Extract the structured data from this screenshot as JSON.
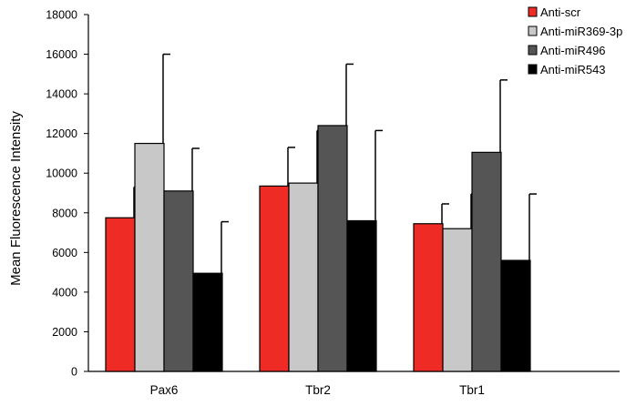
{
  "chart_data": {
    "type": "bar",
    "title": "",
    "xlabel": "",
    "ylabel": "Mean Fluorescence Intensity",
    "ylim": [
      0,
      18000
    ],
    "yticks": [
      0,
      2000,
      4000,
      6000,
      8000,
      10000,
      12000,
      14000,
      16000,
      18000
    ],
    "categories": [
      "Pax6",
      "Tbr2",
      "Tbr1"
    ],
    "grid": false,
    "legend_position": "top-right",
    "series": [
      {
        "name": "Anti-scr",
        "color": "#ee2b24",
        "values": [
          7750,
          9350,
          7450
        ],
        "errors": [
          1550,
          1950,
          1000
        ]
      },
      {
        "name": "Anti-miR369-3p",
        "color": "#c8c8c8",
        "values": [
          11500,
          9500,
          7200
        ],
        "errors": [
          4500,
          2650,
          1750
        ]
      },
      {
        "name": "Anti-miR496",
        "color": "#555555",
        "values": [
          9100,
          12400,
          11050
        ],
        "errors": [
          2150,
          3100,
          3650
        ]
      },
      {
        "name": "Anti-miR543",
        "color": "#000000",
        "values": [
          4950,
          7600,
          5600
        ],
        "errors": [
          2600,
          4550,
          3350
        ]
      }
    ]
  }
}
